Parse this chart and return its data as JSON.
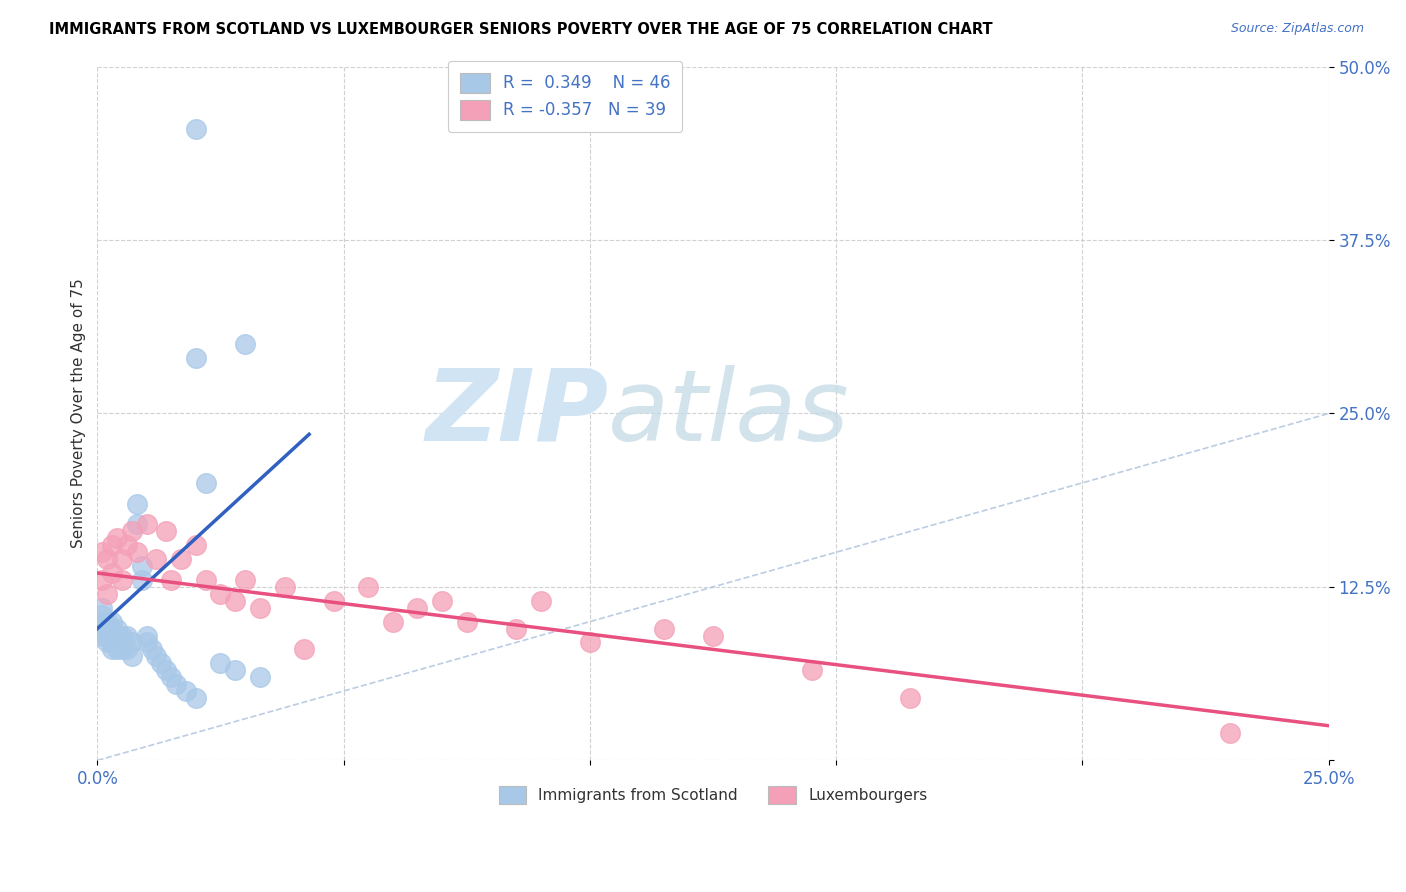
{
  "title": "IMMIGRANTS FROM SCOTLAND VS LUXEMBOURGER SENIORS POVERTY OVER THE AGE OF 75 CORRELATION CHART",
  "source": "Source: ZipAtlas.com",
  "ylabel": "Seniors Poverty Over the Age of 75",
  "xlim": [
    0.0,
    0.25
  ],
  "ylim": [
    0.0,
    0.5
  ],
  "xtick_vals": [
    0.0,
    0.05,
    0.1,
    0.15,
    0.2,
    0.25
  ],
  "ytick_vals": [
    0.0,
    0.125,
    0.25,
    0.375,
    0.5
  ],
  "xtick_labels": [
    "0.0%",
    "",
    "",
    "",
    "",
    "25.0%"
  ],
  "ytick_labels": [
    "",
    "12.5%",
    "25.0%",
    "37.5%",
    "50.0%"
  ],
  "color_blue": "#a8c8e8",
  "color_pink": "#f4a0b8",
  "color_trendline_blue": "#3060c0",
  "color_trendline_pink": "#e85080",
  "color_diagonal": "#a0b8d8",
  "watermark_color": "#d0e4f4",
  "blue_trend_x0": 0.0,
  "blue_trend_y0": 0.095,
  "blue_trend_x1": 0.043,
  "blue_trend_y1": 0.235,
  "pink_trend_x0": 0.0,
  "pink_trend_y0": 0.135,
  "pink_trend_x1": 0.25,
  "pink_trend_y1": 0.025,
  "scotland_x": [
    0.001,
    0.001,
    0.001,
    0.001,
    0.001,
    0.002,
    0.002,
    0.002,
    0.002,
    0.003,
    0.003,
    0.003,
    0.003,
    0.003,
    0.004,
    0.004,
    0.004,
    0.004,
    0.005,
    0.005,
    0.005,
    0.006,
    0.006,
    0.007,
    0.007,
    0.008,
    0.008,
    0.009,
    0.009,
    0.01,
    0.01,
    0.011,
    0.012,
    0.013,
    0.014,
    0.015,
    0.016,
    0.018,
    0.02,
    0.022,
    0.025,
    0.028,
    0.03,
    0.033,
    0.02,
    0.02
  ],
  "scotland_y": [
    0.09,
    0.095,
    0.1,
    0.105,
    0.11,
    0.085,
    0.09,
    0.095,
    0.1,
    0.08,
    0.085,
    0.09,
    0.095,
    0.1,
    0.08,
    0.085,
    0.09,
    0.095,
    0.08,
    0.085,
    0.09,
    0.08,
    0.09,
    0.075,
    0.085,
    0.17,
    0.185,
    0.13,
    0.14,
    0.085,
    0.09,
    0.08,
    0.075,
    0.07,
    0.065,
    0.06,
    0.055,
    0.05,
    0.045,
    0.2,
    0.07,
    0.065,
    0.3,
    0.06,
    0.455,
    0.29
  ],
  "lux_x": [
    0.001,
    0.001,
    0.002,
    0.002,
    0.003,
    0.003,
    0.004,
    0.005,
    0.005,
    0.006,
    0.007,
    0.008,
    0.01,
    0.012,
    0.014,
    0.015,
    0.017,
    0.02,
    0.022,
    0.025,
    0.028,
    0.03,
    0.033,
    0.038,
    0.042,
    0.048,
    0.055,
    0.06,
    0.065,
    0.07,
    0.075,
    0.085,
    0.09,
    0.1,
    0.115,
    0.125,
    0.145,
    0.165,
    0.23
  ],
  "lux_y": [
    0.13,
    0.15,
    0.12,
    0.145,
    0.135,
    0.155,
    0.16,
    0.13,
    0.145,
    0.155,
    0.165,
    0.15,
    0.17,
    0.145,
    0.165,
    0.13,
    0.145,
    0.155,
    0.13,
    0.12,
    0.115,
    0.13,
    0.11,
    0.125,
    0.08,
    0.115,
    0.125,
    0.1,
    0.11,
    0.115,
    0.1,
    0.095,
    0.115,
    0.085,
    0.095,
    0.09,
    0.065,
    0.045,
    0.02
  ]
}
